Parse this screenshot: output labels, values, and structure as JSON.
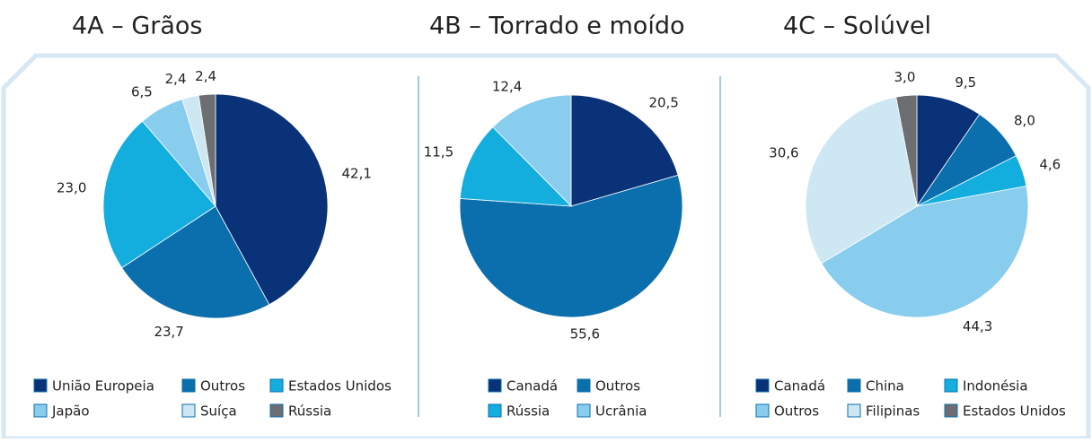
{
  "chart_data": [
    {
      "type": "pie",
      "title": "4A – Grãos",
      "categories": [
        "União Europeia",
        "Outros",
        "Estados Unidos",
        "Japão",
        "Suíça",
        "Rússia"
      ],
      "values": [
        42.1,
        23.7,
        23.0,
        6.5,
        2.4,
        2.4
      ],
      "value_labels": [
        "42,1",
        "23,7",
        "23,0",
        "6,5",
        "2,4",
        "2,4"
      ],
      "colors": [
        "#0a3278",
        "#0b6fae",
        "#13aede",
        "#89cdee",
        "#cde7f3",
        "#6d6e71"
      ]
    },
    {
      "type": "pie",
      "title": "4B – Torrado e moído",
      "categories": [
        "Canadá",
        "Outros",
        "Rússia",
        "Ucrânia"
      ],
      "values": [
        20.5,
        55.6,
        11.5,
        12.4
      ],
      "value_labels": [
        "20,5",
        "55,6",
        "11,5",
        "12,4"
      ],
      "colors": [
        "#0a3278",
        "#0b6fae",
        "#13aede",
        "#89cdee"
      ]
    },
    {
      "type": "pie",
      "title": "4C – Solúvel",
      "categories": [
        "Canadá",
        "China",
        "Indonésia",
        "Outros",
        "Filipinas",
        "Estados Unidos"
      ],
      "values": [
        9.5,
        8.0,
        4.6,
        44.3,
        30.6,
        3.0
      ],
      "value_labels": [
        "9,5",
        "8,0",
        "4,6",
        "44,3",
        "30,6",
        "3,0"
      ],
      "colors": [
        "#0a3278",
        "#0b6fae",
        "#13aede",
        "#89cdee",
        "#cde7f3",
        "#6d6e71"
      ]
    }
  ]
}
